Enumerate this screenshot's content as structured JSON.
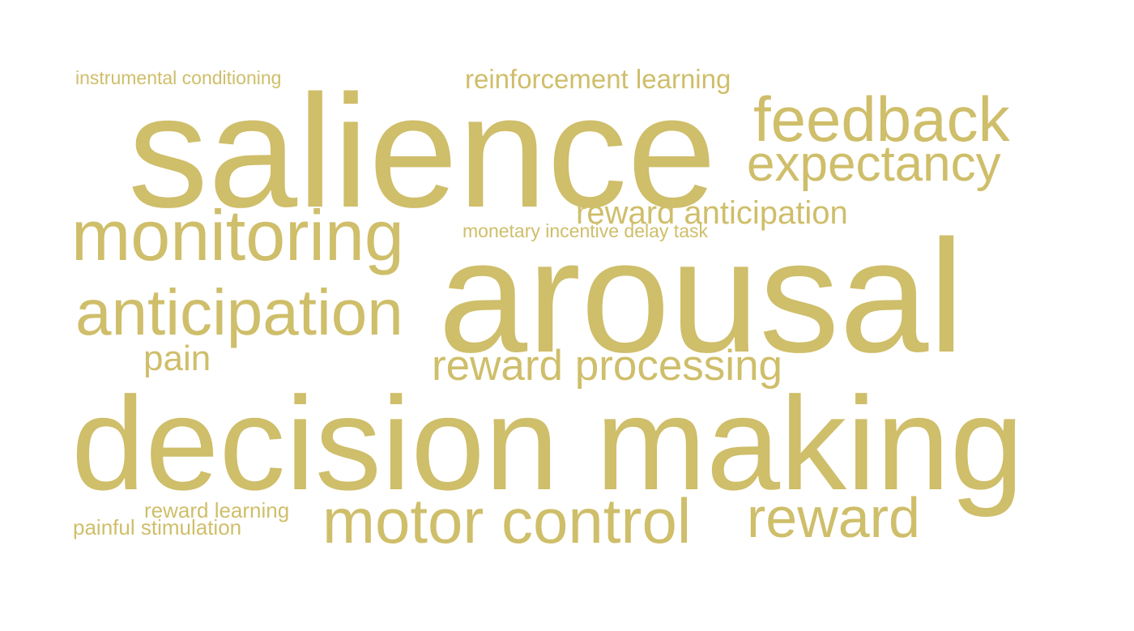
{
  "cloud": {
    "color": "#CFBE6A",
    "background": "#FFFFFF",
    "words": {
      "salience": "salience",
      "arousal": "arousal",
      "decision_making": "decision making",
      "monitoring": "monitoring",
      "anticipation": "anticipation",
      "feedback": "feedback",
      "expectancy": "expectancy",
      "motor_control": "motor control",
      "reward": "reward",
      "reward_processing": "reward processing",
      "reward_anticipation": "reward anticipation",
      "reinforcement_learning": "reinforcement learning",
      "pain": "pain",
      "instrumental_conditioning": "instrumental conditioning",
      "monetary_incentive_delay_task": "monetary incentive delay task",
      "reward_learning": "reward learning",
      "painful_stimulation": "painful stimulation"
    }
  }
}
